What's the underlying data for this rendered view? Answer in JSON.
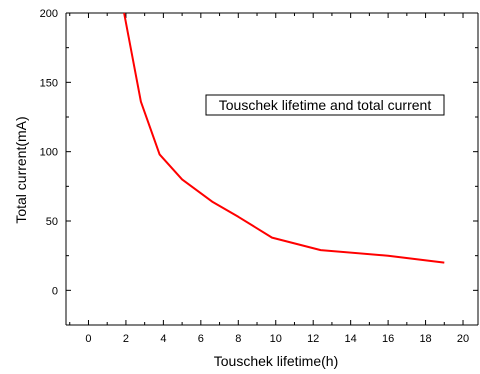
{
  "chart_data": {
    "type": "line",
    "title": "",
    "xlabel": "Touschek lifetime(h)",
    "ylabel": "Total current(mA)",
    "xlim": [
      -1.2,
      20.8
    ],
    "ylim": [
      -25,
      200
    ],
    "xticks": [
      0,
      2,
      4,
      6,
      8,
      10,
      12,
      14,
      16,
      18,
      20
    ],
    "yticks": [
      0,
      50,
      100,
      150,
      200
    ],
    "annotation": "Touschek lifetime and total current",
    "grid": false,
    "series": [
      {
        "color": "#ff0000",
        "x": [
          1.9,
          2.8,
          3.8,
          5.0,
          6.6,
          8.0,
          9.8,
          12.4,
          16.0,
          19.0
        ],
        "y": [
          200,
          136,
          98,
          80,
          64,
          53,
          38,
          29,
          25,
          20
        ]
      }
    ]
  }
}
